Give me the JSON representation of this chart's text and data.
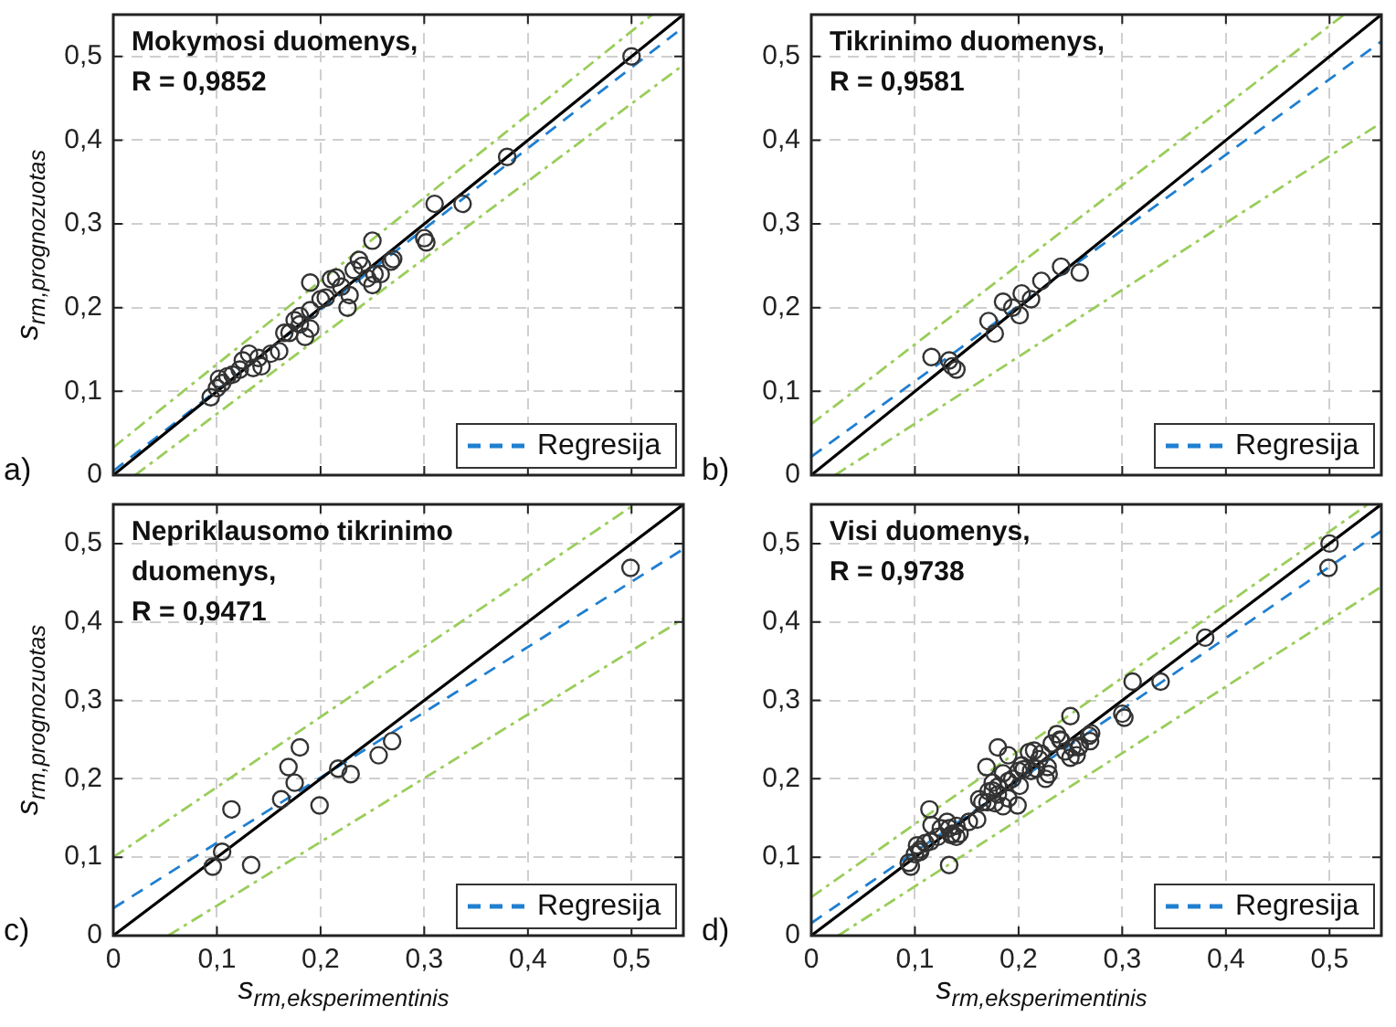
{
  "chart_data": [
    {
      "type": "scatter",
      "title": "Mokymosi duomenys,\nR = 0,9852",
      "ylabel": "s$_{rm,prognozuotas}$",
      "annotations": [
        "a)"
      ],
      "xlim": [
        0,
        0.55
      ],
      "ylim": [
        0,
        0.55
      ],
      "xticks": [
        {
          "value": 0,
          "label": null
        },
        {
          "value": 0.1,
          "label": null
        },
        {
          "value": 0.2,
          "label": null
        },
        {
          "value": 0.3,
          "label": null
        },
        {
          "value": 0.4,
          "label": null
        },
        {
          "value": 0.5,
          "label": null
        }
      ],
      "yticks": [
        {
          "value": 0,
          "label": "0"
        },
        {
          "value": 0.1,
          "label": "0,1"
        },
        {
          "value": 0.2,
          "label": "0,2"
        },
        {
          "value": 0.3,
          "label": "0,3"
        },
        {
          "value": 0.4,
          "label": "0,4"
        },
        {
          "value": 0.5,
          "label": "0,5"
        }
      ],
      "grid": true,
      "legend": "bottom right",
      "tick_labels": "y",
      "series": [
        {
          "type": "scatter",
          "marker": "circle",
          "color": "#333333",
          "x": [
            0.5,
            0.38,
            0.31,
            0.337,
            0.3,
            0.302,
            0.25,
            0.27,
            0.268,
            0.237,
            0.232,
            0.25,
            0.252,
            0.19,
            0.21,
            0.215,
            0.226,
            0.205,
            0.19,
            0.18,
            0.19,
            0.17,
            0.18,
            0.16,
            0.152,
            0.143,
            0.131,
            0.125,
            0.122,
            0.11,
            0.102,
            0.1,
            0.094,
            0.24,
            0.245,
            0.22,
            0.2,
            0.175,
            0.165,
            0.14,
            0.135,
            0.115,
            0.105,
            0.258,
            0.228,
            0.185
          ],
          "values": [
            0.5,
            0.38,
            0.324,
            0.324,
            0.283,
            0.278,
            0.28,
            0.258,
            0.255,
            0.257,
            0.245,
            0.227,
            0.24,
            0.23,
            0.234,
            0.236,
            0.2,
            0.212,
            0.197,
            0.19,
            0.175,
            0.17,
            0.18,
            0.148,
            0.145,
            0.13,
            0.145,
            0.137,
            0.126,
            0.118,
            0.115,
            0.104,
            0.093,
            0.25,
            0.235,
            0.225,
            0.21,
            0.185,
            0.17,
            0.14,
            0.128,
            0.12,
            0.11,
            0.24,
            0.215,
            0.165
          ]
        },
        {
          "type": "line",
          "color": "#000000",
          "line_style": "solid",
          "x": [
            0,
            0.55
          ],
          "values": [
            0,
            0.55
          ]
        },
        {
          "type": "line",
          "name": "Regresija",
          "color": "#1f7fd0",
          "line_style": "dashed",
          "x": [
            0,
            0.55
          ],
          "values": [
            0.005,
            0.535
          ]
        },
        {
          "type": "line",
          "color": "#9acd5a",
          "line_style": "dashdot",
          "x": [
            0,
            0.52
          ],
          "values": [
            0.033,
            0.55
          ]
        },
        {
          "type": "line",
          "color": "#9acd5a",
          "line_style": "dashdot",
          "x": [
            0.021,
            0.55
          ],
          "values": [
            0,
            0.49
          ]
        }
      ]
    },
    {
      "type": "scatter",
      "title": "Tikrinimo duomenys,\nR = 0,9581",
      "annotations": [
        "b)"
      ],
      "xlim": [
        0,
        0.55
      ],
      "ylim": [
        0,
        0.55
      ],
      "xticks": [
        {
          "value": 0,
          "label": null
        },
        {
          "value": 0.1,
          "label": null
        },
        {
          "value": 0.2,
          "label": null
        },
        {
          "value": 0.3,
          "label": null
        },
        {
          "value": 0.4,
          "label": null
        },
        {
          "value": 0.5,
          "label": null
        }
      ],
      "yticks": [
        {
          "value": 0,
          "label": "0"
        },
        {
          "value": 0.1,
          "label": "0,1"
        },
        {
          "value": 0.2,
          "label": "0,2"
        },
        {
          "value": 0.3,
          "label": "0,3"
        },
        {
          "value": 0.4,
          "label": "0,4"
        },
        {
          "value": 0.5,
          "label": "0,5"
        }
      ],
      "grid": true,
      "legend": "bottom right",
      "tick_labels": "y",
      "series": [
        {
          "type": "scatter",
          "marker": "circle",
          "color": "#333333",
          "x": [
            0.116,
            0.133,
            0.136,
            0.14,
            0.171,
            0.177,
            0.185,
            0.194,
            0.203,
            0.201,
            0.212,
            0.222,
            0.241,
            0.259
          ],
          "values": [
            0.141,
            0.137,
            0.13,
            0.126,
            0.184,
            0.169,
            0.207,
            0.2,
            0.217,
            0.191,
            0.21,
            0.232,
            0.249,
            0.242
          ]
        },
        {
          "type": "line",
          "color": "#000000",
          "line_style": "solid",
          "x": [
            0,
            0.55
          ],
          "values": [
            0,
            0.55
          ]
        },
        {
          "type": "line",
          "name": "Regresija",
          "color": "#1f7fd0",
          "line_style": "dashed",
          "x": [
            0,
            0.55
          ],
          "values": [
            0.022,
            0.518
          ]
        },
        {
          "type": "line",
          "color": "#9acd5a",
          "line_style": "dashdot",
          "x": [
            0,
            0.514
          ],
          "values": [
            0.061,
            0.55
          ]
        },
        {
          "type": "line",
          "color": "#9acd5a",
          "line_style": "dashdot",
          "x": [
            0.023,
            0.55
          ],
          "values": [
            0,
            0.421
          ]
        }
      ]
    },
    {
      "type": "scatter",
      "title": "Nepriklausomo tikrinimo\nduomenys,\nR = 0,9471",
      "xlabel": "s$_{rm,eksperimentinis}$",
      "ylabel": "s$_{rm,prognozuotas}$",
      "annotations": [
        "c)"
      ],
      "xlim": [
        0,
        0.55
      ],
      "ylim": [
        0,
        0.55
      ],
      "xticks": [
        {
          "value": 0,
          "label": "0"
        },
        {
          "value": 0.1,
          "label": "0,1"
        },
        {
          "value": 0.2,
          "label": "0,2"
        },
        {
          "value": 0.3,
          "label": "0,3"
        },
        {
          "value": 0.4,
          "label": "0,4"
        },
        {
          "value": 0.5,
          "label": "0,5"
        }
      ],
      "yticks": [
        {
          "value": 0,
          "label": "0"
        },
        {
          "value": 0.1,
          "label": "0,1"
        },
        {
          "value": 0.2,
          "label": "0,2"
        },
        {
          "value": 0.3,
          "label": "0,3"
        },
        {
          "value": 0.4,
          "label": "0,4"
        },
        {
          "value": 0.5,
          "label": "0,5"
        }
      ],
      "grid": true,
      "legend": "bottom right",
      "series": [
        {
          "type": "scatter",
          "marker": "circle",
          "color": "#333333",
          "x": [
            0.499,
            0.096,
            0.105,
            0.114,
            0.133,
            0.162,
            0.169,
            0.175,
            0.18,
            0.199,
            0.217,
            0.229,
            0.256,
            0.269
          ],
          "values": [
            0.469,
            0.088,
            0.107,
            0.161,
            0.09,
            0.174,
            0.215,
            0.195,
            0.24,
            0.166,
            0.213,
            0.206,
            0.23,
            0.248
          ]
        },
        {
          "type": "line",
          "color": "#000000",
          "line_style": "solid",
          "x": [
            0,
            0.55
          ],
          "values": [
            0,
            0.55
          ]
        },
        {
          "type": "line",
          "name": "Regresija",
          "color": "#1f7fd0",
          "line_style": "dashed",
          "x": [
            0,
            0.55
          ],
          "values": [
            0.035,
            0.493
          ]
        },
        {
          "type": "line",
          "color": "#9acd5a",
          "line_style": "dashdot",
          "x": [
            0,
            0.503
          ],
          "values": [
            0.1,
            0.55
          ]
        },
        {
          "type": "line",
          "color": "#9acd5a",
          "line_style": "dashdot",
          "x": [
            0.053,
            0.55
          ],
          "values": [
            0,
            0.404
          ]
        }
      ]
    },
    {
      "type": "scatter",
      "title": "Visi duomenys,\nR = 0,9738",
      "xlabel": "s$_{rm,eksperimentinis}$",
      "annotations": [
        "d)"
      ],
      "xlim": [
        0,
        0.55
      ],
      "ylim": [
        0,
        0.55
      ],
      "xticks": [
        {
          "value": 0,
          "label": "0"
        },
        {
          "value": 0.1,
          "label": "0,1"
        },
        {
          "value": 0.2,
          "label": "0,2"
        },
        {
          "value": 0.3,
          "label": "0,3"
        },
        {
          "value": 0.4,
          "label": "0,4"
        },
        {
          "value": 0.5,
          "label": "0,5"
        }
      ],
      "yticks": [
        {
          "value": 0,
          "label": "0"
        },
        {
          "value": 0.1,
          "label": "0,1"
        },
        {
          "value": 0.2,
          "label": "0,2"
        },
        {
          "value": 0.3,
          "label": "0,3"
        },
        {
          "value": 0.4,
          "label": "0,4"
        },
        {
          "value": 0.5,
          "label": "0,5"
        }
      ],
      "grid": true,
      "legend": "bottom right",
      "series": [
        {
          "type": "scatter",
          "marker": "circle",
          "color": "#333333",
          "x": [
            0.5,
            0.38,
            0.31,
            0.337,
            0.3,
            0.302,
            0.25,
            0.27,
            0.268,
            0.237,
            0.232,
            0.25,
            0.252,
            0.19,
            0.21,
            0.215,
            0.226,
            0.205,
            0.19,
            0.18,
            0.19,
            0.17,
            0.18,
            0.16,
            0.152,
            0.143,
            0.131,
            0.125,
            0.122,
            0.11,
            0.102,
            0.1,
            0.094,
            0.24,
            0.245,
            0.22,
            0.2,
            0.175,
            0.165,
            0.14,
            0.135,
            0.115,
            0.105,
            0.258,
            0.228,
            0.185,
            0.116,
            0.133,
            0.136,
            0.14,
            0.171,
            0.177,
            0.185,
            0.194,
            0.203,
            0.201,
            0.212,
            0.222,
            0.241,
            0.259,
            0.499,
            0.096,
            0.105,
            0.114,
            0.133,
            0.162,
            0.169,
            0.175,
            0.18,
            0.199,
            0.217,
            0.229,
            0.256,
            0.269
          ],
          "values": [
            0.5,
            0.38,
            0.324,
            0.324,
            0.283,
            0.278,
            0.28,
            0.258,
            0.255,
            0.257,
            0.245,
            0.227,
            0.24,
            0.23,
            0.234,
            0.236,
            0.2,
            0.212,
            0.197,
            0.19,
            0.175,
            0.17,
            0.18,
            0.148,
            0.145,
            0.13,
            0.145,
            0.137,
            0.126,
            0.118,
            0.115,
            0.104,
            0.093,
            0.25,
            0.235,
            0.225,
            0.21,
            0.185,
            0.17,
            0.14,
            0.128,
            0.12,
            0.11,
            0.24,
            0.215,
            0.165,
            0.141,
            0.137,
            0.13,
            0.126,
            0.184,
            0.169,
            0.207,
            0.2,
            0.217,
            0.191,
            0.21,
            0.232,
            0.249,
            0.242,
            0.469,
            0.088,
            0.107,
            0.161,
            0.09,
            0.174,
            0.215,
            0.195,
            0.24,
            0.166,
            0.213,
            0.206,
            0.23,
            0.248
          ]
        },
        {
          "type": "line",
          "color": "#000000",
          "line_style": "solid",
          "x": [
            0,
            0.55
          ],
          "values": [
            0,
            0.55
          ]
        },
        {
          "type": "line",
          "name": "Regresija",
          "color": "#1f7fd0",
          "line_style": "dashed",
          "x": [
            0,
            0.55
          ],
          "values": [
            0.016,
            0.516
          ]
        },
        {
          "type": "line",
          "color": "#9acd5a",
          "line_style": "dashdot",
          "x": [
            0,
            0.537
          ],
          "values": [
            0.049,
            0.55
          ]
        },
        {
          "type": "line",
          "color": "#9acd5a",
          "line_style": "dashdot",
          "x": [
            0.026,
            0.55
          ],
          "values": [
            0,
            0.445
          ]
        }
      ]
    }
  ]
}
